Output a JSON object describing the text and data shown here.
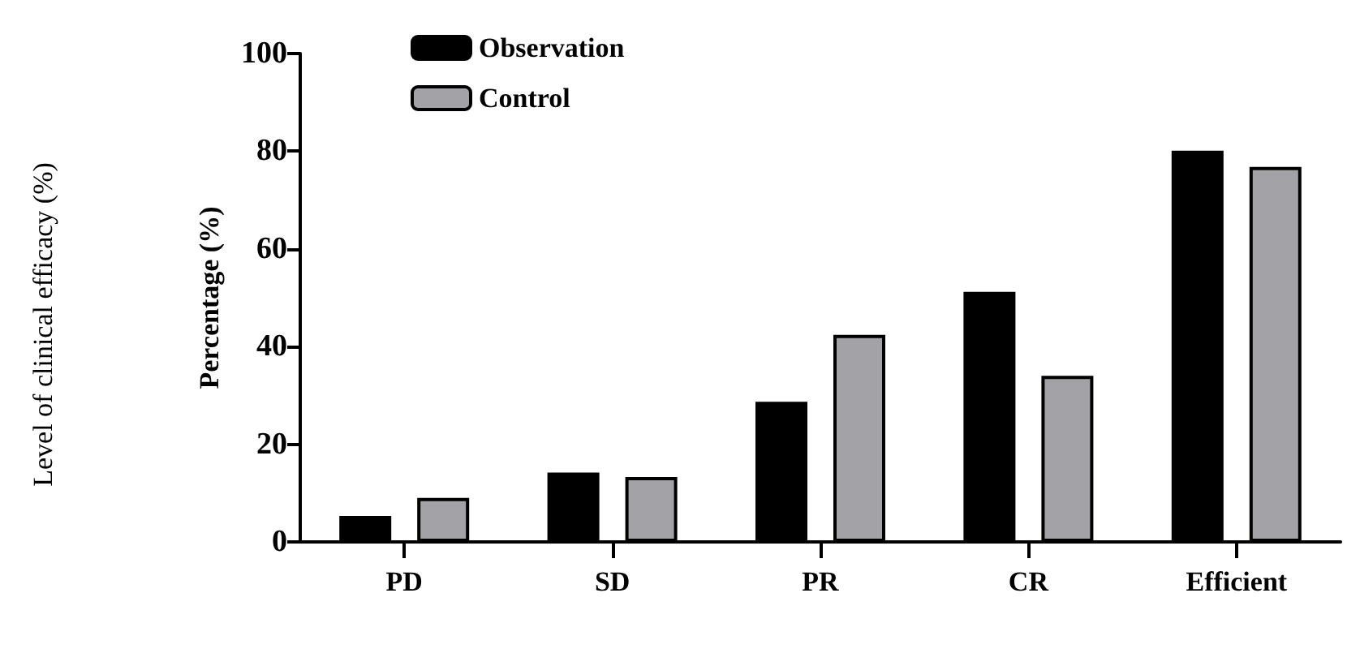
{
  "chart_data": {
    "type": "bar",
    "categories": [
      "PD",
      "SD",
      "PR",
      "CR",
      "Efficient"
    ],
    "series": [
      {
        "name": "Observation",
        "color": "#000000",
        "values": [
          5.3,
          14.2,
          28.7,
          51.2,
          80.1
        ]
      },
      {
        "name": "Control",
        "color": "#a3a3a7",
        "values": [
          9.0,
          13.3,
          42.4,
          34.0,
          76.8
        ]
      }
    ],
    "ylabel": "Percentage (%)",
    "annotations": [
      "Level of clinical efficacy (%)"
    ],
    "ylim": [
      0,
      100
    ],
    "yticks": [
      0,
      20,
      40,
      60,
      80,
      100
    ],
    "grid": false,
    "legend": "top left"
  }
}
